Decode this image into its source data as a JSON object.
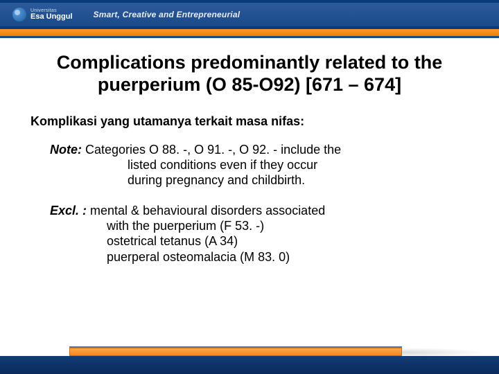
{
  "colors": {
    "header_bg": "#0a3a7a",
    "header_inner_top": "#2d5a9a",
    "header_inner_bottom": "#1a4a8a",
    "orange_top": "#ff9a2e",
    "orange_bottom": "#f57c00",
    "thin_blue": "#1a4a8a",
    "footer_blue_top": "#123c78",
    "footer_blue_bottom": "#0a2a5a",
    "text": "#000000",
    "tagline": "#e8eef6"
  },
  "header": {
    "logo_small": "Universitas",
    "logo_big": "Esa Unggul",
    "tagline": "Smart, Creative and Entrepreneurial"
  },
  "title": "Complications predominantly related to the puerperium (O 85-O92)  [671 – 674]",
  "subtitle": "Komplikasi yang utamanya terkait masa nifas:",
  "note": {
    "label": "Note:",
    "line1": "  Categories O 88. -, O 91. -, O 92. - include the",
    "line2": "listed    conditions even if they occur",
    "line3": "during pregnancy and childbirth."
  },
  "excl": {
    "label": "Excl. :",
    "line1": "  mental & behavioural disorders associated",
    "line2": "with the puerperium (F 53. -)",
    "line3": "ostetrical tetanus (A 34)",
    "line4": "puerperal osteomalacia (M 83. 0)"
  }
}
